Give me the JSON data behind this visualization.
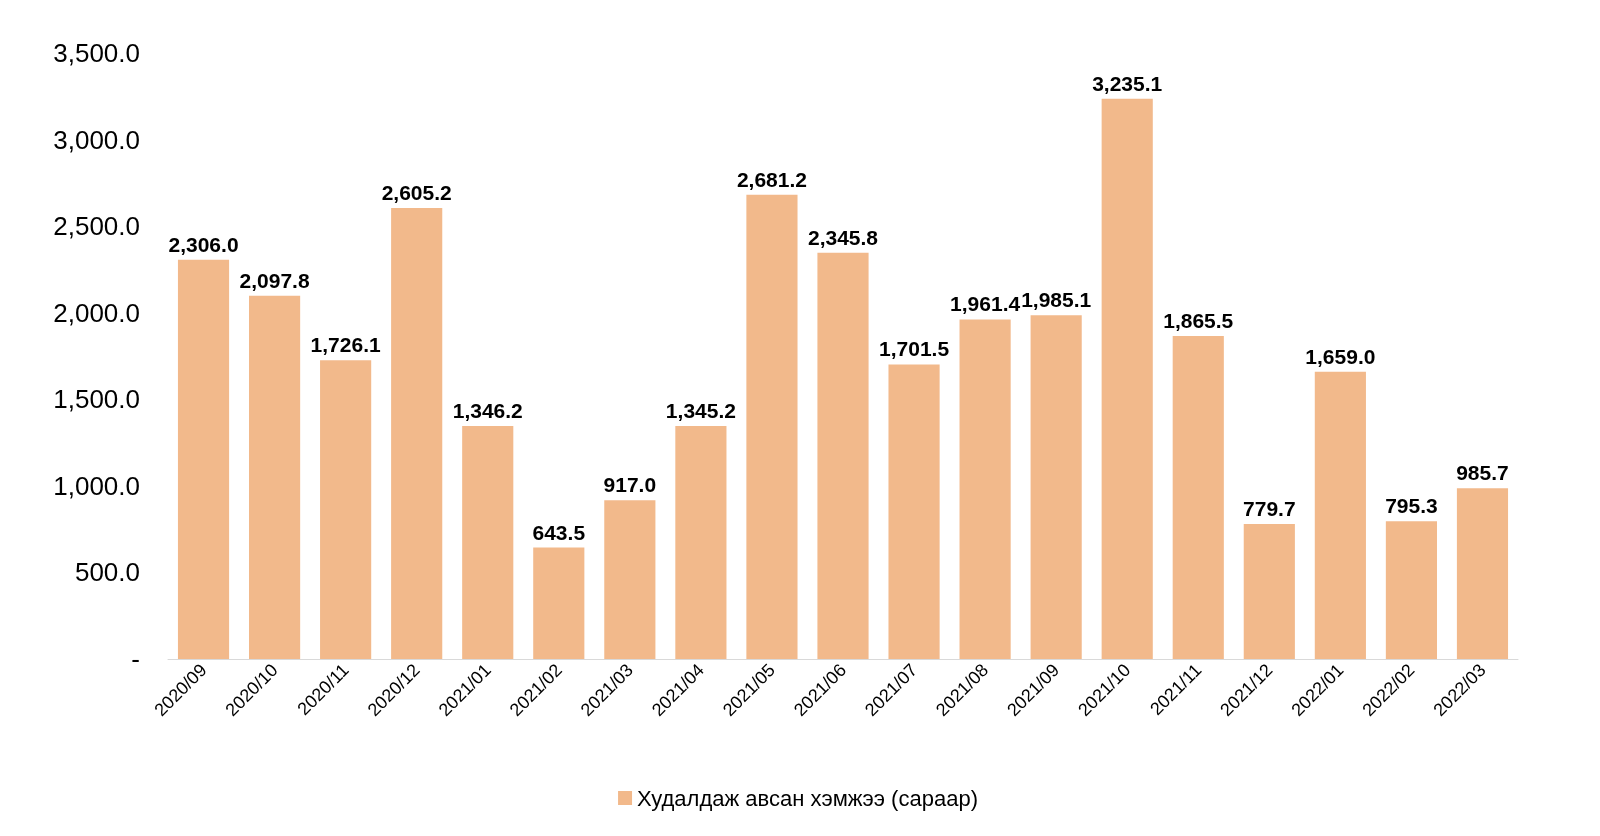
{
  "chart_data": {
    "type": "bar",
    "categories": [
      "2020/09",
      "2020/10",
      "2020/11",
      "2020/12",
      "2021/01",
      "2021/02",
      "2021/03",
      "2021/04",
      "2021/05",
      "2021/06",
      "2021/07",
      "2021/08",
      "2021/09",
      "2021/10",
      "2021/11",
      "2021/12",
      "2022/01",
      "2022/02",
      "2022/03"
    ],
    "series": [
      {
        "name": "Худалдаж авсан хэмжээ (сараар)",
        "color": "#f2b98b",
        "values": [
          2306.0,
          2097.8,
          1726.1,
          2605.2,
          1346.2,
          643.5,
          917.0,
          1345.2,
          2681.2,
          2345.8,
          1701.5,
          1961.4,
          1985.1,
          3235.1,
          1865.5,
          779.7,
          1659.0,
          795.3,
          985.7
        ],
        "value_labels": [
          "2,306.0",
          "2,097.8",
          "1,726.1",
          "2,605.2",
          "1,346.2",
          "643.5",
          "917.0",
          "1,345.2",
          "2,681.2",
          "2,345.8",
          "1,701.5",
          "1,961.4",
          "1,985.1",
          "3,235.1",
          "1,865.5",
          "779.7",
          "1,659.0",
          "795.3",
          "985.7"
        ]
      }
    ],
    "ylim": [
      0,
      3500
    ],
    "yticks": [
      {
        "value": 0,
        "label": "-"
      },
      {
        "value": 500,
        "label": "500.0"
      },
      {
        "value": 1000,
        "label": "1,000.0"
      },
      {
        "value": 1500,
        "label": "1,500.0"
      },
      {
        "value": 2000,
        "label": "2,000.0"
      },
      {
        "value": 2500,
        "label": "2,500.0"
      },
      {
        "value": 3000,
        "label": "3,000.0"
      },
      {
        "value": 3500,
        "label": "3,500.0"
      }
    ],
    "grid": false,
    "legend": "bottom"
  }
}
